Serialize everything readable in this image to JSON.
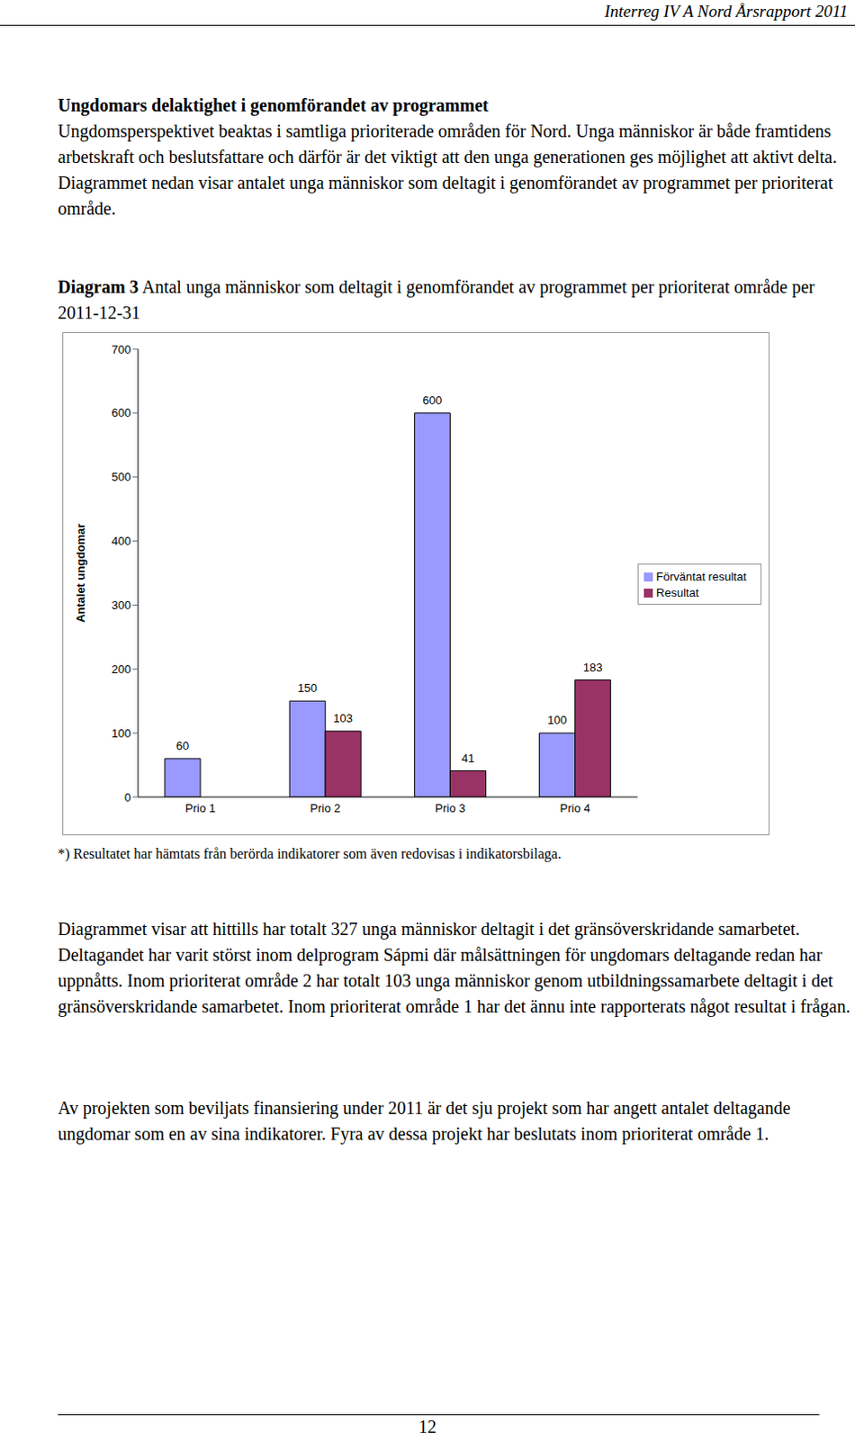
{
  "header": "Interreg IV A Nord Årsrapport 2011",
  "heading": "Ungdomars delaktighet i genomförandet av programmet",
  "intro": "Ungdomsperspektivet beaktas i samtliga prioriterade områden för Nord. Unga människor är både framtidens arbetskraft och beslutsfattare och därför är det viktigt att den unga generationen ges möjlighet att aktivt delta. Diagrammet nedan visar antalet unga människor som deltagit i genomförandet av programmet per prioriterat område.",
  "caption_label": "Diagram 3",
  "caption": "Antal unga människor som deltagit i genomförandet av programmet per prioriterat område per 2011-12-31",
  "chart_data": {
    "type": "bar",
    "categories": [
      "Prio 1",
      "Prio 2",
      "Prio 3",
      "Prio 4"
    ],
    "series": [
      {
        "name": "Förväntat resultat",
        "color": "#9999ff",
        "values": [
          60,
          150,
          600,
          100
        ]
      },
      {
        "name": "Resultat",
        "color": "#993366",
        "values": [
          0,
          103,
          41,
          183
        ]
      }
    ],
    "y_label": "Antalet ungdomar",
    "ylim": [
      0,
      700
    ],
    "yticks": [
      0,
      100,
      200,
      300,
      400,
      500,
      600,
      700
    ],
    "grid": false,
    "legend": "right",
    "data_labels": true
  },
  "footnote": "*) Resultatet har hämtats från berörda indikatorer som även redovisas i indikatorsbilaga.",
  "body": [
    "Diagrammet visar att hittills har totalt 327 unga människor deltagit i det gränsöverskridande samarbetet. Deltagandet har varit störst inom delprogram Sápmi där målsättningen för ungdomars deltagande redan har uppnåtts. Inom prioriterat område 2 har totalt 103 unga människor genom utbildningssamarbete deltagit i det gränsöverskridande samarbetet. Inom prioriterat område 1 har det ännu inte rapporterats något resultat i frågan.",
    "Av projekten som beviljats finansiering under 2011 är det sju projekt som har angett antalet deltagande ungdomar som en av sina indikatorer. Fyra av dessa projekt har beslutats inom prioriterat område 1."
  ],
  "page_number": "12"
}
